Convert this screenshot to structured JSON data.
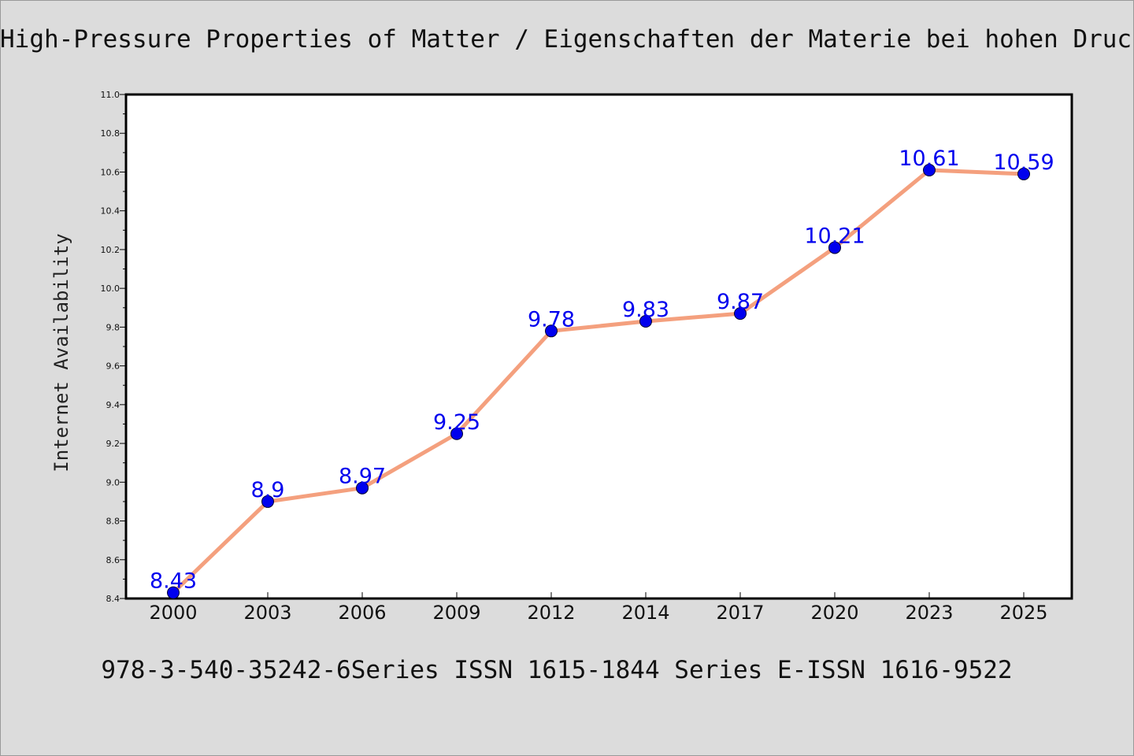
{
  "header": {
    "title": "High-Pressure Properties of Matter / Eigenschaften der Materie bei hohen Drucken"
  },
  "footer": {
    "text": "978-3-540-35242-6Series ISSN 1615-1844 Series E-ISSN 1616-9522"
  },
  "colors": {
    "background": "#dcdcdc",
    "line": "#f4a07e",
    "marker": "#0000ee",
    "data_label": "#0000ee",
    "axes": "#000000"
  },
  "chart_data": {
    "type": "line",
    "title": "",
    "xlabel": "",
    "ylabel": "Internet Availability",
    "categories": [
      "2000",
      "2003",
      "2006",
      "2009",
      "2012",
      "2014",
      "2017",
      "2020",
      "2023",
      "2025"
    ],
    "series": [
      {
        "values": [
          8.43,
          8.9,
          8.97,
          9.25,
          9.78,
          9.83,
          9.87,
          10.21,
          10.61,
          10.59
        ]
      }
    ],
    "data_labels": [
      "8.43",
      "8.9",
      "8.97",
      "9.25",
      "9.78",
      "9.83",
      "9.87",
      "10.21",
      "10.61",
      "10.59"
    ],
    "ylim": [
      8.4,
      11.0
    ],
    "yticks": [
      "8.4",
      "8.6",
      "8.8",
      "9.0",
      "9.2",
      "9.4",
      "9.6",
      "9.8",
      "10.0",
      "10.2",
      "10.4",
      "10.6",
      "10.8",
      "11.0"
    ],
    "grid": false,
    "legend": "none"
  }
}
